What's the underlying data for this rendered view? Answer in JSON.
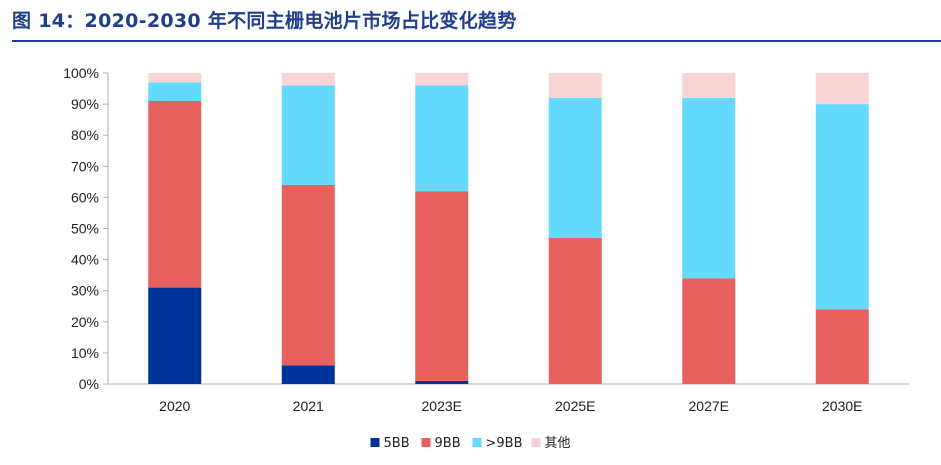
{
  "title": "图 14：2020-2030 年不同主栅电池片市场占比变化趋势",
  "chart_data": {
    "type": "bar",
    "stacked": true,
    "title": "图 14：2020-2030 年不同主栅电池片市场占比变化趋势",
    "xlabel": "",
    "ylabel": "",
    "ylim": [
      0,
      100
    ],
    "y_ticks": [
      "0%",
      "10%",
      "20%",
      "30%",
      "40%",
      "50%",
      "60%",
      "70%",
      "80%",
      "90%",
      "100%"
    ],
    "categories": [
      "2020",
      "2021",
      "2023E",
      "2025E",
      "2027E",
      "2030E"
    ],
    "series": [
      {
        "name": "5BB",
        "color": "#003399",
        "values": [
          31,
          6,
          1,
          0,
          0,
          0
        ]
      },
      {
        "name": "9BB",
        "color": "#e86161",
        "values": [
          60,
          58,
          61,
          47,
          34,
          24
        ]
      },
      {
        "name": ">9BB",
        "color": "#66d9ff",
        "values": [
          6,
          32,
          34,
          45,
          58,
          66
        ]
      },
      {
        "name": "其他",
        "color": "#f9d4d4",
        "values": [
          3,
          4,
          4,
          8,
          8,
          10
        ]
      }
    ],
    "legend_position": "bottom",
    "grid": false
  }
}
